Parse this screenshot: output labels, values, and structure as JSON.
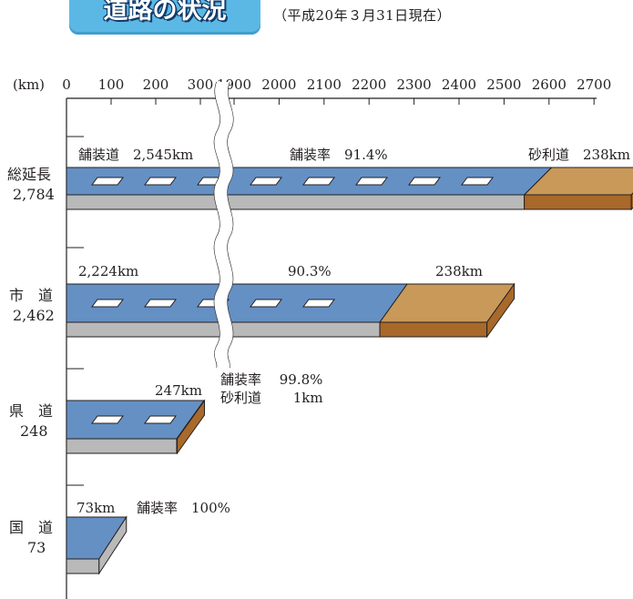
{
  "header": {
    "title": "道路の状況",
    "note": "（平成20年３月31日現在）"
  },
  "colors": {
    "paved_top": "#6590c4",
    "paved_edge": "#b9b9b9",
    "gravel_top": "#c9995a",
    "gravel_edge": "#a8692a",
    "stripe": "#ffffff",
    "badge": "#5bb8e4"
  },
  "chart_data": {
    "type": "bar",
    "orientation": "horizontal",
    "stacked": true,
    "axis_unit": "(km)",
    "x_ticks_left": [
      "0",
      "100",
      "200",
      "300"
    ],
    "x_ticks_right": [
      "1900",
      "2000",
      "2100",
      "2200",
      "2300",
      "2400",
      "2500",
      "2600",
      "2700"
    ],
    "axis_break": [
      340,
      1860
    ],
    "categories": [
      {
        "name": "総延長",
        "total": "2,784",
        "label_lines": [
          "総延長",
          "2,784"
        ]
      },
      {
        "name": "市　道",
        "total": "2,462",
        "label_lines": [
          "市　道",
          "2,462"
        ]
      },
      {
        "name": "県　道",
        "total": "248",
        "label_lines": [
          "県　道",
          "248"
        ]
      },
      {
        "name": "国　道",
        "total": "73",
        "label_lines": [
          "国　道",
          "73"
        ]
      }
    ],
    "series": [
      {
        "name": "舗装道",
        "values": [
          2545,
          2224,
          247,
          73
        ]
      },
      {
        "name": "砂利道",
        "values": [
          238,
          238,
          1,
          0
        ]
      }
    ],
    "annotations": {
      "total_paved": "舗装道　2,545km",
      "total_rate": "舗装率　91.4%",
      "total_gravel": "砂利道　238km",
      "city_paved": "2,224km",
      "city_rate": "90.3%",
      "city_gravel": "238km",
      "pref_paved": "247km",
      "pref_rate": "舗装率　 99.8%",
      "pref_gravel": "砂利道　　 1km",
      "nat_paved": "73km",
      "nat_rate": "舗装率　100%"
    }
  }
}
